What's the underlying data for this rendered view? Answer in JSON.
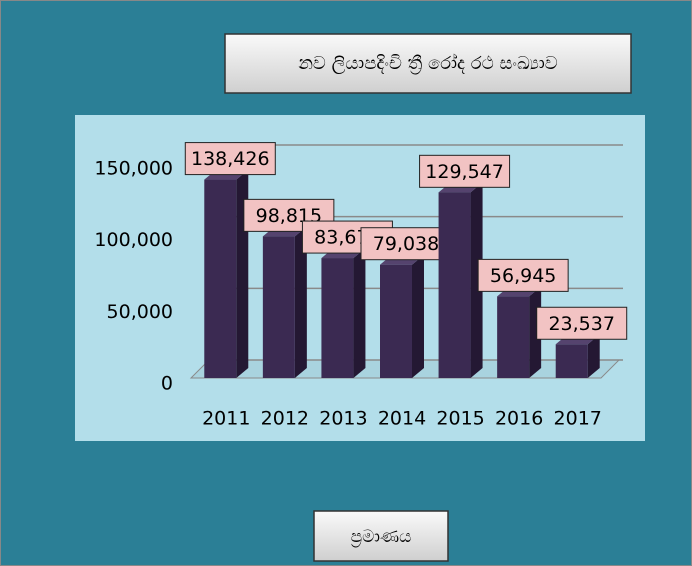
{
  "chart_data": {
    "type": "bar",
    "title": "නව ලියාපදිංචි ත්‍රී රෝද රථ සංඛ්‍යාව",
    "categories": [
      "2011",
      "2012",
      "2013",
      "2014",
      "2015",
      "2016",
      "2017"
    ],
    "values": [
      138426,
      98815,
      83673,
      79038,
      129547,
      56945,
      23537
    ],
    "value_labels": [
      "138,426",
      "98,815",
      "83,673",
      "79,038",
      "129,547",
      "56,945",
      "23,537"
    ],
    "color": "#3b2a52",
    "ylim": [
      0,
      150000
    ],
    "yticks": [
      0,
      {
        "value": 50000,
        "label": "50,000"
      },
      {
        "value": 100000,
        "label": "100,000"
      },
      {
        "value": 150000,
        "label": "150,000"
      }
    ],
    "grid": true
  },
  "button": {
    "label": "ප්‍රමාණය"
  }
}
